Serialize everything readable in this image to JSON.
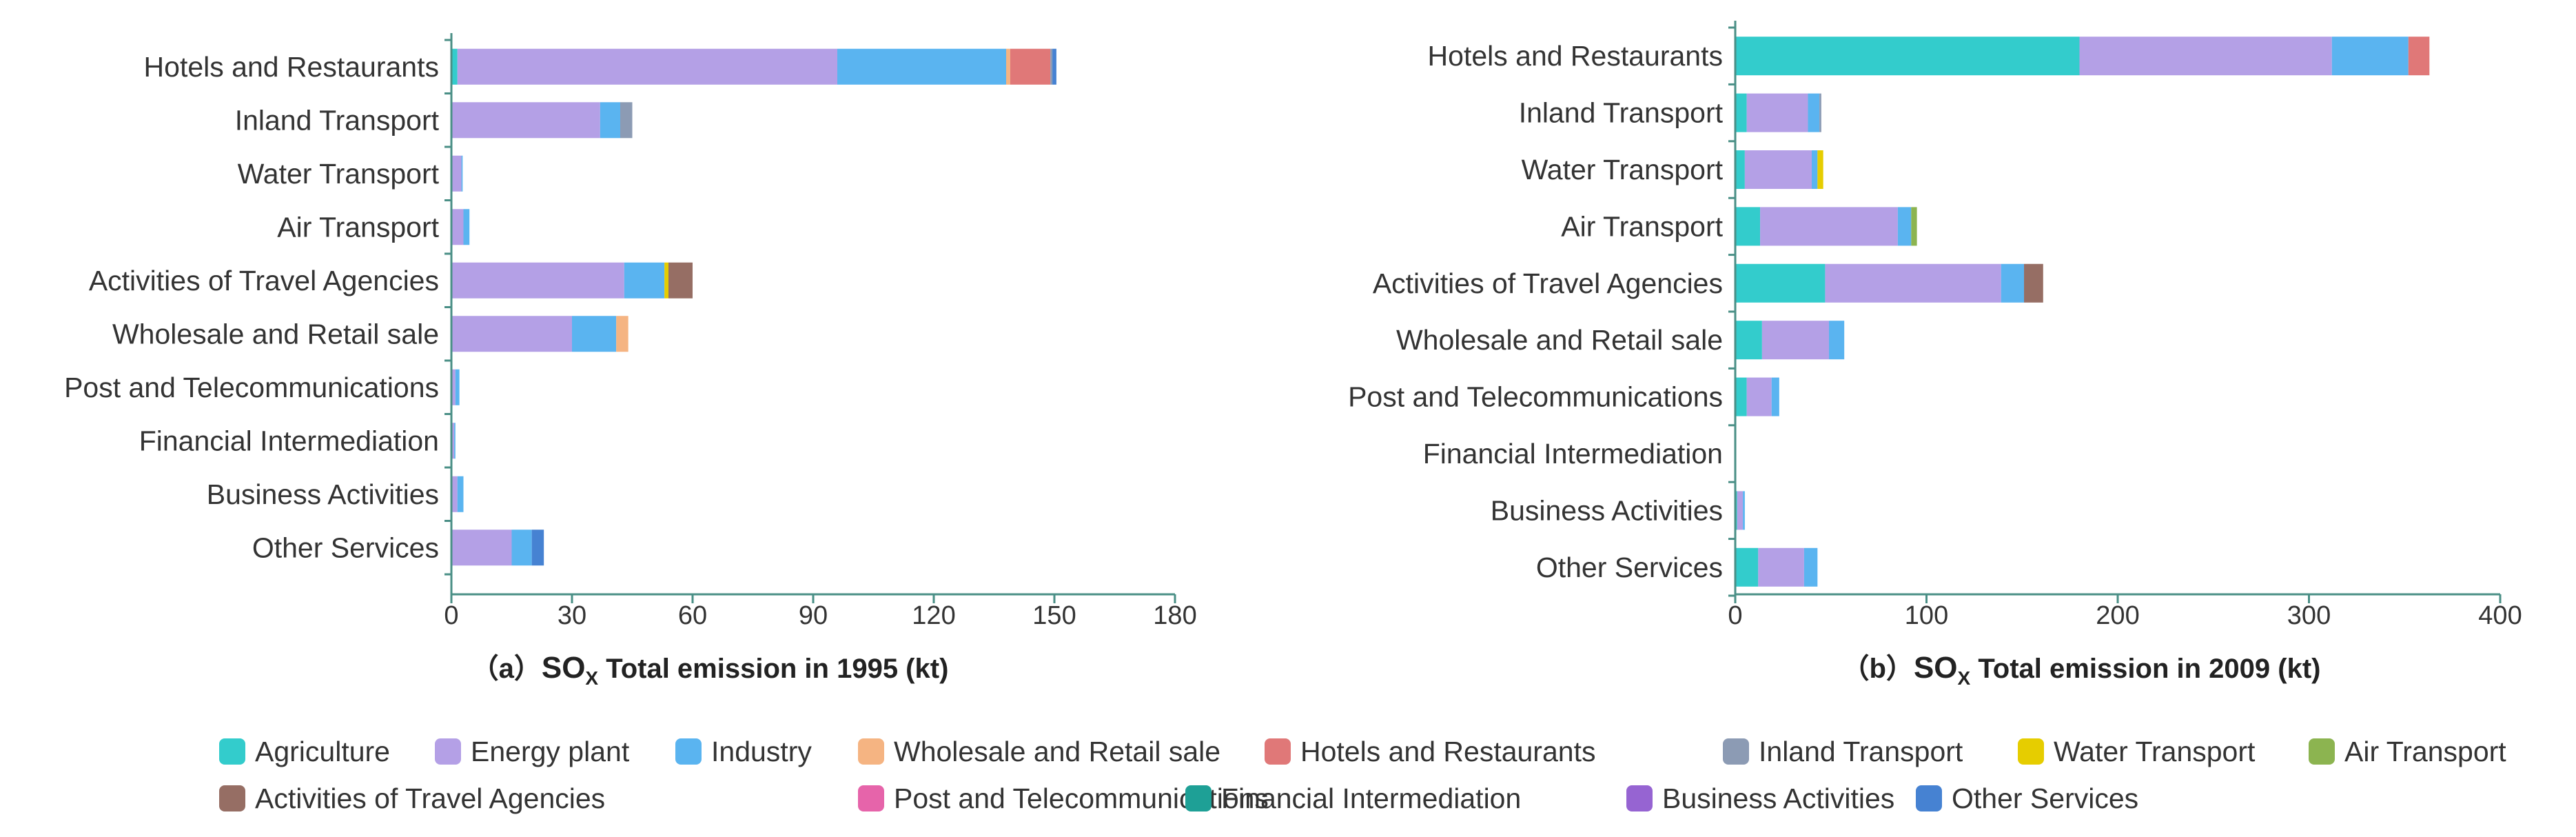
{
  "stack_order": [
    "Agriculture",
    "Energy plant",
    "Industry",
    "Wholesale and Retail sale",
    "Hotels and Restaurants",
    "Inland Transport",
    "Water Transport",
    "Air Transport",
    "Activities of Travel Agencies",
    "Post and Telecommunications",
    "Financial Intermediation",
    "Business Activities",
    "Other Services"
  ],
  "legend": [
    {
      "label": "Agriculture",
      "color": "#33CCCC"
    },
    {
      "label": "Energy plant",
      "color": "#B4A0E6"
    },
    {
      "label": "Industry",
      "color": "#5AB4F0"
    },
    {
      "label": "Wholesale and Retail sale",
      "color": "#F5B482"
    },
    {
      "label": "Hotels and Restaurants",
      "color": "#E07878"
    },
    {
      "label": "Inland Transport",
      "color": "#8C9BB4"
    },
    {
      "label": "Water Transport",
      "color": "#E6CD00"
    },
    {
      "label": "Air Transport",
      "color": "#8CB450"
    },
    {
      "label": "Activities of Travel Agencies",
      "color": "#966E64"
    },
    {
      "label": "Post and Telecommunications",
      "color": "#E664AA"
    },
    {
      "label": "Financial Intermediation",
      "color": "#1EA096"
    },
    {
      "label": "Business Activities",
      "color": "#9664D2"
    },
    {
      "label": "Other Services",
      "color": "#4682D2"
    }
  ],
  "chart_data": [
    {
      "type": "bar",
      "orientation": "horizontal",
      "stacked": true,
      "title_prefix": "（a）",
      "title_so": "SO",
      "title_sub": "X",
      "title_rest": " Total emission in 1995 (kt)",
      "categories": [
        "Hotels and Restaurants",
        "Inland Transport",
        "Water Transport",
        "Air Transport",
        "Activities of Travel Agencies",
        "Wholesale and Retail sale",
        "Post and Telecommunications",
        "Financial Intermediation",
        "Business Activities",
        "Other Services"
      ],
      "xlim": [
        0,
        180
      ],
      "xticks": [
        "0",
        "30",
        "60",
        "90",
        "120",
        "150",
        "180"
      ],
      "series": [
        {
          "name": "Agriculture",
          "values": [
            1.5,
            0,
            0,
            0,
            0,
            0,
            0,
            0,
            0,
            0
          ]
        },
        {
          "name": "Energy plant",
          "values": [
            94.5,
            37,
            2.5,
            3,
            43,
            30,
            1,
            0.7,
            1.5,
            15
          ]
        },
        {
          "name": "Industry",
          "values": [
            42,
            5,
            0.3,
            1.5,
            10,
            11,
            1,
            0.3,
            1.5,
            5
          ]
        },
        {
          "name": "Wholesale and Retail sale",
          "values": [
            1,
            0,
            0,
            0,
            0,
            3,
            0,
            0,
            0,
            0
          ]
        },
        {
          "name": "Hotels and Restaurants",
          "values": [
            10,
            0,
            0,
            0,
            0,
            0,
            0,
            0,
            0,
            0
          ]
        },
        {
          "name": "Inland Transport",
          "values": [
            0.5,
            3,
            0,
            0,
            0,
            0,
            0,
            0,
            0,
            0
          ]
        },
        {
          "name": "Water Transport",
          "values": [
            0,
            0,
            0,
            0,
            1,
            0,
            0,
            0,
            0,
            0
          ]
        },
        {
          "name": "Air Transport",
          "values": [
            0,
            0,
            0,
            0,
            0,
            0,
            0,
            0,
            0,
            0
          ]
        },
        {
          "name": "Activities of Travel Agencies",
          "values": [
            0,
            0,
            0,
            0,
            6,
            0,
            0,
            0,
            0,
            0
          ]
        },
        {
          "name": "Post and Telecommunications",
          "values": [
            0,
            0,
            0,
            0,
            0,
            0,
            0,
            0,
            0,
            0
          ]
        },
        {
          "name": "Financial Intermediation",
          "values": [
            0,
            0,
            0,
            0,
            0,
            0,
            0,
            0,
            0,
            0
          ]
        },
        {
          "name": "Business Activities",
          "values": [
            0,
            0,
            0,
            0,
            0,
            0,
            0,
            0,
            0,
            0
          ]
        },
        {
          "name": "Other Services",
          "values": [
            1,
            0,
            0,
            0,
            0,
            0,
            0,
            0,
            0,
            3
          ]
        }
      ]
    },
    {
      "type": "bar",
      "orientation": "horizontal",
      "stacked": true,
      "title_prefix": "（b）",
      "title_so": "SO",
      "title_sub": "X",
      "title_rest": " Total emission in 2009 (kt)",
      "categories": [
        "Hotels and Restaurants",
        "Inland Transport",
        "Water Transport",
        "Air Transport",
        "Activities of Travel Agencies",
        "Wholesale and Retail sale",
        "Post and Telecommunications",
        "Financial Intermediation",
        "Business Activities",
        "Other Services"
      ],
      "xlim": [
        0,
        400
      ],
      "xticks": [
        "0",
        "100",
        "200",
        "300",
        "400"
      ],
      "series": [
        {
          "name": "Agriculture",
          "values": [
            180,
            6,
            5,
            13,
            47,
            14,
            6,
            0,
            1,
            12
          ]
        },
        {
          "name": "Energy plant",
          "values": [
            132,
            32,
            35,
            72,
            92,
            35,
            13,
            0.5,
            3,
            24
          ]
        },
        {
          "name": "Industry",
          "values": [
            40,
            6,
            3,
            7,
            12,
            8,
            4,
            0,
            1,
            7
          ]
        },
        {
          "name": "Wholesale and Retail sale",
          "values": [
            0,
            0,
            0,
            0,
            0,
            0,
            0,
            0,
            0,
            0
          ]
        },
        {
          "name": "Hotels and Restaurants",
          "values": [
            11,
            0,
            0,
            0,
            0,
            0,
            0,
            0,
            0,
            0
          ]
        },
        {
          "name": "Inland Transport",
          "values": [
            0,
            1,
            0,
            0,
            0,
            0,
            0,
            0,
            0,
            0
          ]
        },
        {
          "name": "Water Transport",
          "values": [
            0,
            0,
            3,
            0,
            0,
            0,
            0,
            0,
            0,
            0
          ]
        },
        {
          "name": "Air Transport",
          "values": [
            0,
            0,
            0,
            3,
            0,
            0,
            0,
            0,
            0,
            0
          ]
        },
        {
          "name": "Activities of Travel Agencies",
          "values": [
            0,
            0,
            0,
            0,
            10,
            0,
            0,
            0,
            0,
            0
          ]
        },
        {
          "name": "Post and Telecommunications",
          "values": [
            0,
            0,
            0,
            0,
            0,
            0,
            0,
            0,
            0,
            0
          ]
        },
        {
          "name": "Financial Intermediation",
          "values": [
            0,
            0,
            0,
            0,
            0,
            0,
            0,
            0,
            0,
            0
          ]
        },
        {
          "name": "Business Activities",
          "values": [
            0,
            0,
            0,
            0,
            0,
            0,
            0,
            0,
            0,
            0
          ]
        },
        {
          "name": "Other Services",
          "values": [
            0,
            0,
            0,
            0,
            0,
            0,
            0,
            0,
            0,
            0
          ]
        }
      ]
    }
  ]
}
